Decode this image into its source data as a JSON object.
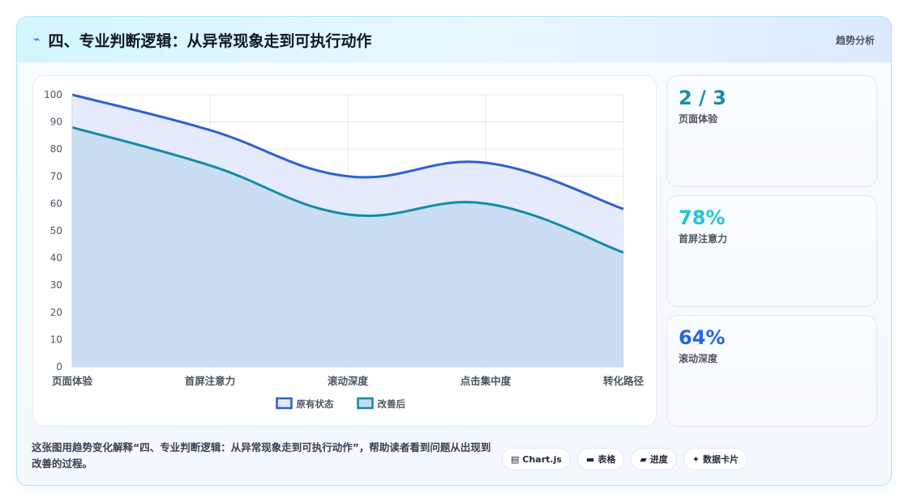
{
  "header": {
    "icon": "bolt-icon",
    "title": "四、专业判断逻辑：从异常现象走到可执行动作",
    "tag": "趋势分析"
  },
  "chart_data": {
    "type": "area",
    "categories": [
      "页面体验",
      "首屏注意力",
      "滚动深度",
      "点击集中度",
      "转化路径"
    ],
    "series": [
      {
        "name": "原有状态",
        "values": [
          100,
          87,
          70,
          75,
          58
        ],
        "color": "#2e5fd6",
        "fill": "#e0e8fb"
      },
      {
        "name": "改善后",
        "values": [
          88,
          74,
          56,
          60,
          42
        ],
        "color": "#148aa8",
        "fill": "#c4dcf0"
      }
    ],
    "ylim": [
      0,
      100
    ],
    "yticks": [
      0,
      10,
      20,
      30,
      40,
      50,
      60,
      70,
      80,
      90,
      100
    ],
    "grid": true,
    "legend_position": "bottom"
  },
  "stats": [
    {
      "value": "2 / 3",
      "label": "页面体验",
      "color": "#1490a6"
    },
    {
      "value": "78%",
      "label": "首屏注意力",
      "color": "#22c4dc"
    },
    {
      "value": "64%",
      "label": "滚动深度",
      "color": "#2563eb"
    }
  ],
  "description": "这张图用趋势变化解释“四、专业判断逻辑：从异常现象走到可执行动作”，帮助读者看到问题从出现到改善的过程。",
  "pills": [
    {
      "icon": "chart-icon",
      "glyph": "▤",
      "label": "Chart.js"
    },
    {
      "icon": "table-icon",
      "glyph": "▬",
      "label": "表格"
    },
    {
      "icon": "progress-icon",
      "glyph": "▰",
      "label": "进度"
    },
    {
      "icon": "sparkle-icon",
      "glyph": "✦",
      "label": "数据卡片"
    }
  ]
}
